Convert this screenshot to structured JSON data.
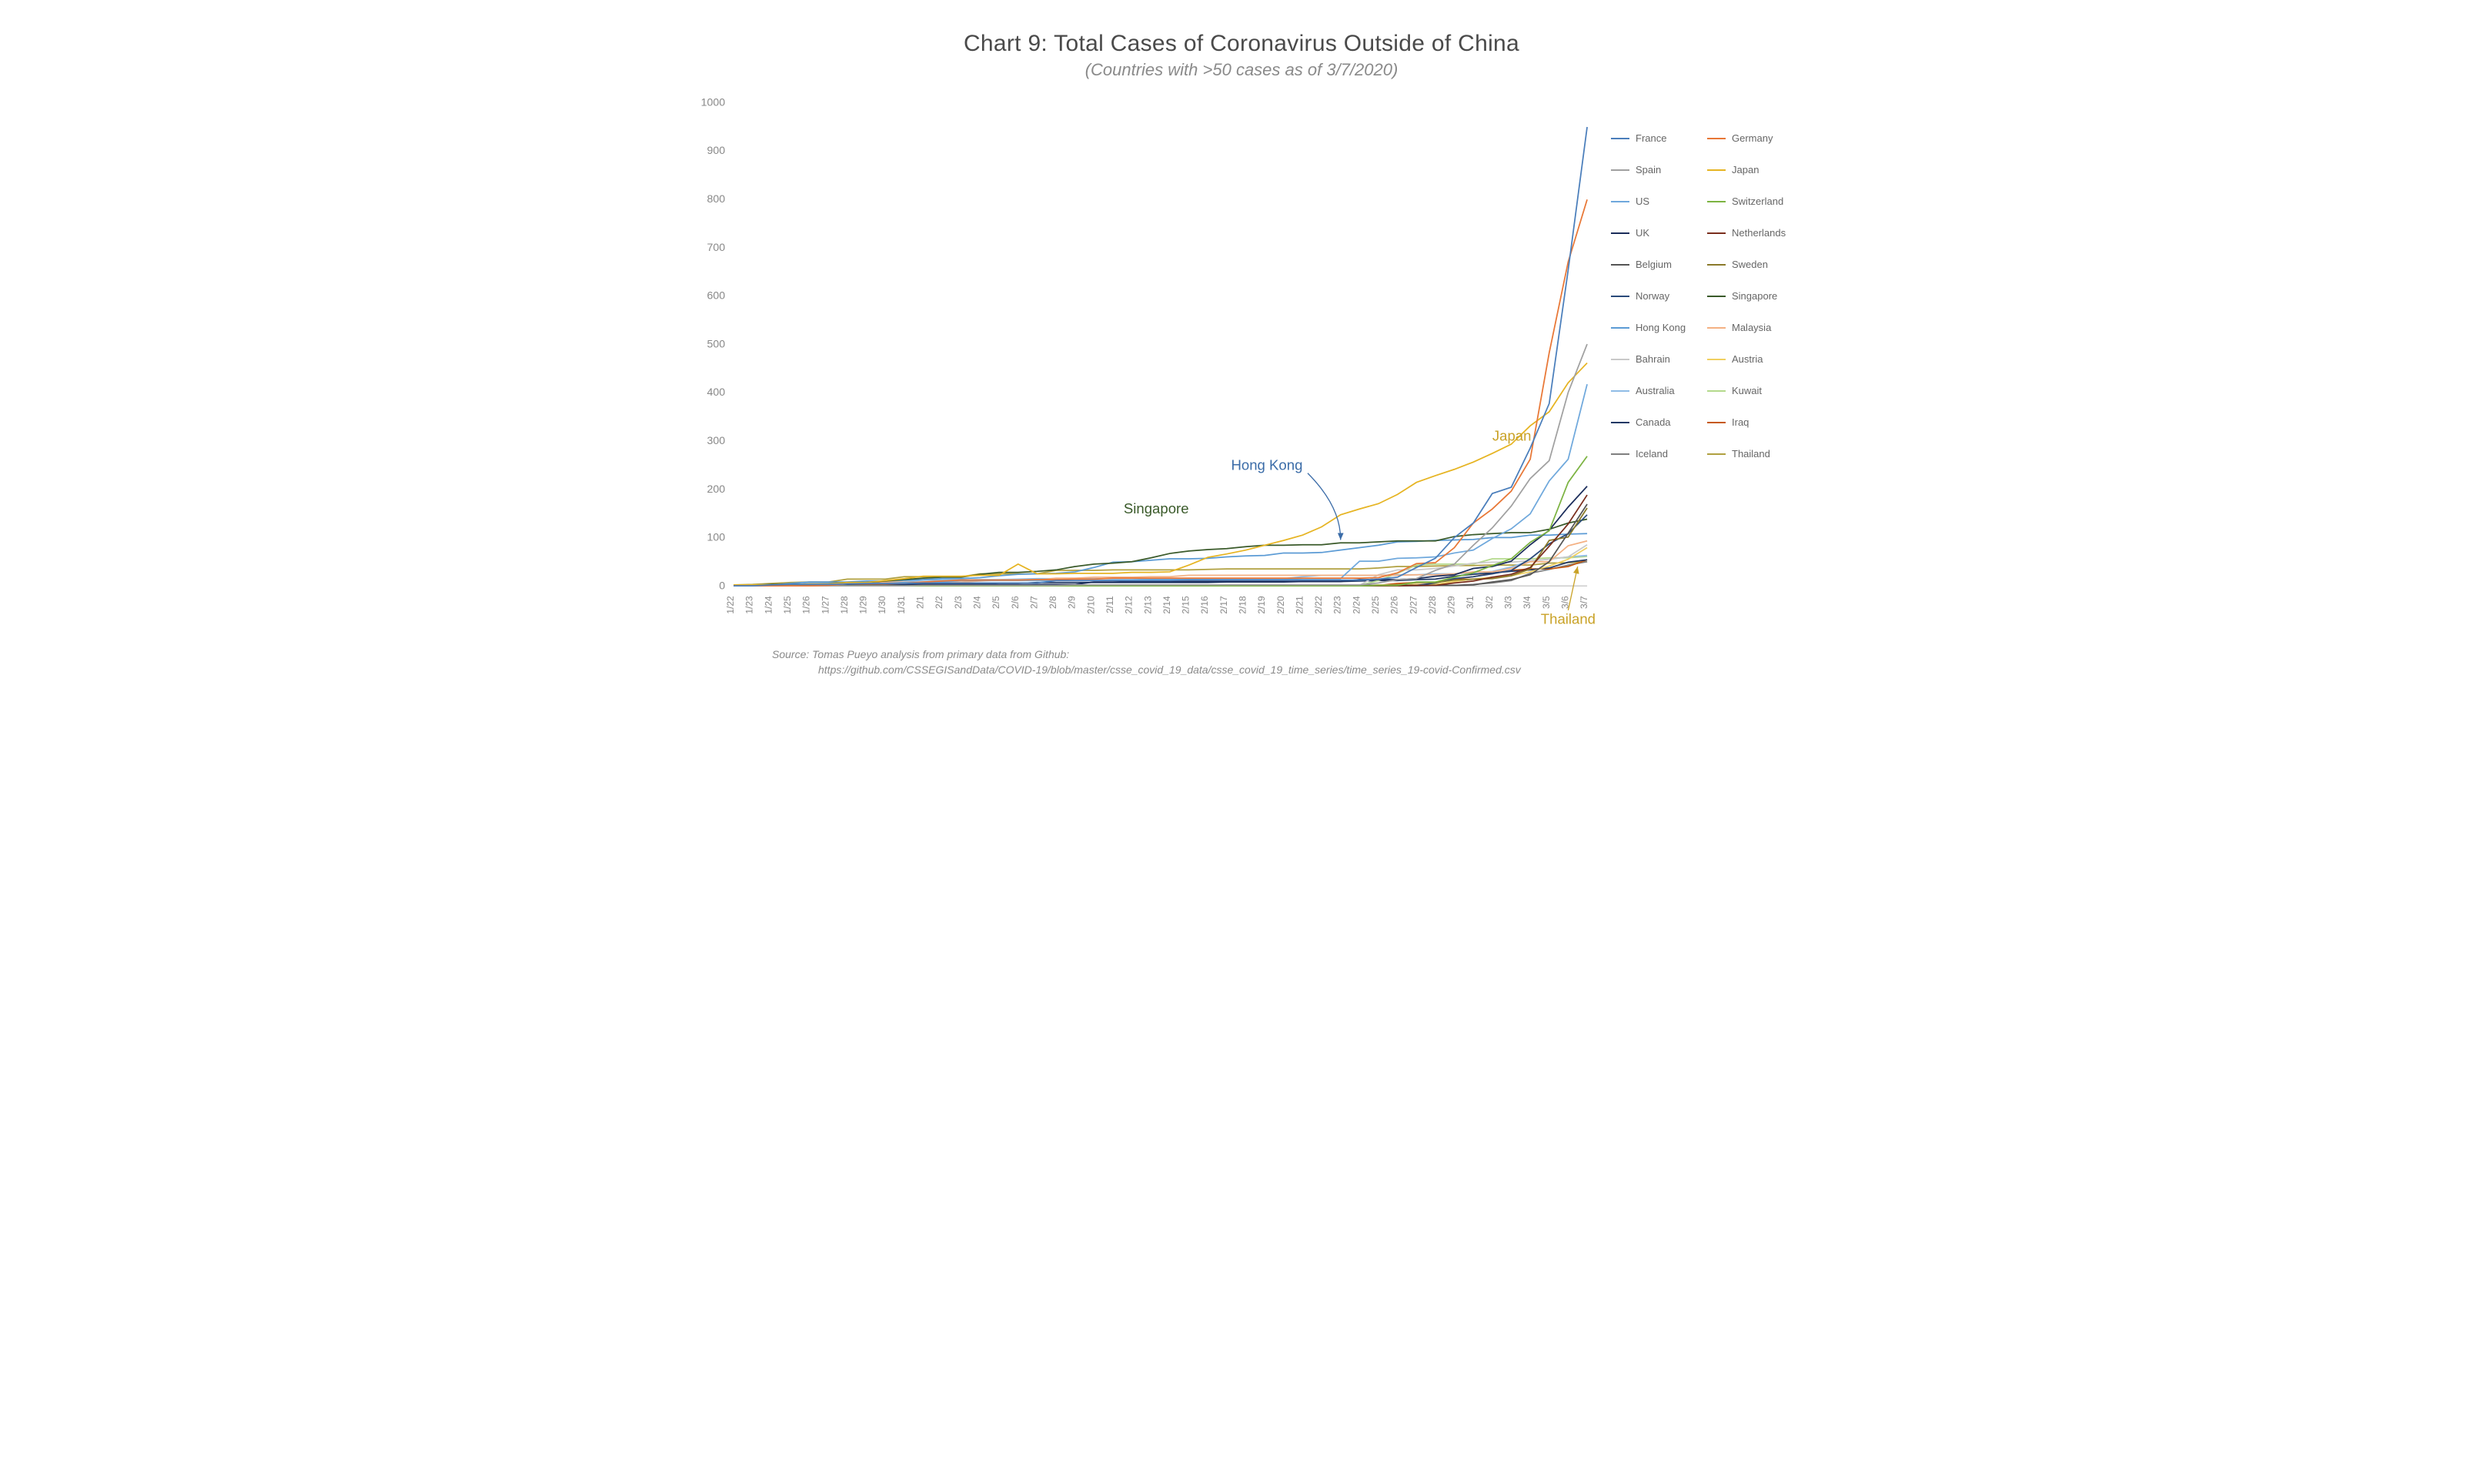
{
  "title": "Chart 9: Total Cases of Coronavirus Outside of China",
  "subtitle": "(Countries with >50 cases as of 3/7/2020)",
  "source_line1": "Source: Tomas Pueyo analysis from primary data from Github:",
  "source_line2": "https://github.com/CSSEGISandData/COVID-19/blob/master/csse_covid_19_data/csse_covid_19_time_series/time_series_19-covid-Confirmed.csv",
  "chart": {
    "type": "line",
    "background_color": "#ffffff",
    "ylim": [
      0,
      1000
    ],
    "ytick_step": 100,
    "yticks": [
      0,
      100,
      200,
      300,
      400,
      500,
      600,
      700,
      800,
      900,
      1000
    ],
    "xticks": [
      "1/22",
      "1/23",
      "1/24",
      "1/25",
      "1/26",
      "1/27",
      "1/28",
      "1/29",
      "1/30",
      "1/31",
      "2/1",
      "2/2",
      "2/3",
      "2/4",
      "2/5",
      "2/6",
      "2/7",
      "2/8",
      "2/9",
      "2/10",
      "2/11",
      "2/12",
      "2/13",
      "2/14",
      "2/15",
      "2/16",
      "2/17",
      "2/18",
      "2/19",
      "2/20",
      "2/21",
      "2/22",
      "2/23",
      "2/24",
      "2/25",
      "2/26",
      "2/27",
      "2/28",
      "2/29",
      "3/1",
      "3/2",
      "3/3",
      "3/4",
      "3/5",
      "3/6",
      "3/7"
    ],
    "title_fontsize": 30,
    "subtitle_fontsize": 22,
    "label_fontsize": 13,
    "line_width": 1.6,
    "grid": false,
    "baseline_color": "#bbbbbb",
    "text_color": "#888888",
    "series": [
      {
        "name": "France",
        "color": "#4a7ebb",
        "values": [
          0,
          0,
          2,
          3,
          3,
          3,
          4,
          5,
          5,
          5,
          6,
          6,
          6,
          6,
          6,
          6,
          6,
          11,
          11,
          11,
          11,
          11,
          11,
          11,
          12,
          12,
          12,
          12,
          12,
          12,
          12,
          12,
          12,
          12,
          14,
          18,
          38,
          57,
          100,
          130,
          191,
          204,
          285,
          377,
          653,
          949
        ]
      },
      {
        "name": "Germany",
        "color": "#e87736",
        "values": [
          0,
          0,
          0,
          0,
          0,
          1,
          4,
          4,
          4,
          5,
          8,
          10,
          12,
          12,
          12,
          12,
          13,
          13,
          14,
          14,
          16,
          16,
          16,
          16,
          16,
          16,
          16,
          16,
          16,
          16,
          16,
          16,
          16,
          16,
          17,
          27,
          46,
          48,
          79,
          130,
          159,
          196,
          262,
          482,
          670,
          799
        ]
      },
      {
        "name": "Spain",
        "color": "#a0a0a0",
        "values": [
          0,
          0,
          0,
          0,
          0,
          0,
          0,
          0,
          0,
          0,
          1,
          1,
          1,
          1,
          1,
          1,
          1,
          1,
          2,
          2,
          2,
          2,
          2,
          2,
          2,
          2,
          2,
          2,
          2,
          2,
          2,
          2,
          2,
          2,
          6,
          13,
          15,
          32,
          45,
          84,
          120,
          165,
          222,
          259,
          400,
          500
        ]
      },
      {
        "name": "Japan",
        "color": "#e6b422",
        "values": [
          2,
          2,
          2,
          2,
          4,
          4,
          7,
          7,
          11,
          15,
          20,
          20,
          20,
          22,
          22,
          45,
          25,
          25,
          26,
          26,
          26,
          28,
          28,
          29,
          43,
          59,
          66,
          74,
          84,
          94,
          105,
          122,
          147,
          159,
          170,
          189,
          214,
          228,
          241,
          256,
          274,
          293,
          331,
          360,
          420,
          461
        ]
      },
      {
        "name": "US",
        "color": "#6fa8dc",
        "values": [
          1,
          1,
          2,
          2,
          5,
          5,
          5,
          5,
          5,
          7,
          8,
          8,
          11,
          11,
          11,
          11,
          11,
          11,
          11,
          11,
          12,
          12,
          13,
          13,
          13,
          13,
          13,
          13,
          13,
          13,
          15,
          15,
          15,
          51,
          51,
          57,
          58,
          60,
          68,
          74,
          98,
          118,
          149,
          217,
          262,
          417
        ]
      },
      {
        "name": "Switzerland",
        "color": "#7cb342",
        "values": [
          0,
          0,
          0,
          0,
          0,
          0,
          0,
          0,
          0,
          0,
          0,
          0,
          0,
          0,
          0,
          0,
          0,
          0,
          0,
          0,
          0,
          0,
          0,
          0,
          0,
          0,
          0,
          0,
          0,
          0,
          0,
          0,
          0,
          0,
          1,
          1,
          8,
          8,
          18,
          27,
          42,
          56,
          90,
          114,
          214,
          268
        ]
      },
      {
        "name": "UK",
        "color": "#1b2d5b",
        "values": [
          0,
          0,
          0,
          0,
          0,
          0,
          0,
          0,
          0,
          2,
          2,
          2,
          2,
          2,
          2,
          2,
          3,
          3,
          3,
          8,
          8,
          9,
          9,
          9,
          9,
          9,
          9,
          9,
          9,
          9,
          9,
          9,
          9,
          13,
          13,
          13,
          15,
          20,
          23,
          36,
          40,
          51,
          85,
          115,
          163,
          206
        ]
      },
      {
        "name": "Netherlands",
        "color": "#7a2e1d",
        "values": [
          0,
          0,
          0,
          0,
          0,
          0,
          0,
          0,
          0,
          0,
          0,
          0,
          0,
          0,
          0,
          0,
          0,
          0,
          0,
          0,
          0,
          0,
          0,
          0,
          0,
          0,
          0,
          0,
          0,
          0,
          0,
          0,
          0,
          0,
          0,
          0,
          1,
          1,
          6,
          10,
          18,
          24,
          38,
          82,
          128,
          188
        ]
      },
      {
        "name": "Belgium",
        "color": "#555555",
        "values": [
          0,
          0,
          0,
          0,
          0,
          0,
          0,
          0,
          0,
          0,
          0,
          0,
          0,
          1,
          1,
          1,
          1,
          1,
          1,
          1,
          1,
          1,
          1,
          1,
          1,
          1,
          1,
          1,
          1,
          1,
          1,
          1,
          1,
          1,
          1,
          1,
          1,
          1,
          1,
          2,
          8,
          13,
          23,
          50,
          109,
          169
        ]
      },
      {
        "name": "Sweden",
        "color": "#8a7a2a",
        "values": [
          0,
          0,
          0,
          0,
          0,
          0,
          0,
          0,
          0,
          1,
          1,
          1,
          1,
          1,
          1,
          1,
          1,
          1,
          1,
          1,
          1,
          1,
          1,
          1,
          1,
          1,
          1,
          1,
          1,
          1,
          1,
          1,
          1,
          1,
          1,
          2,
          7,
          7,
          12,
          14,
          15,
          21,
          35,
          94,
          101,
          161
        ]
      },
      {
        "name": "Norway",
        "color": "#2a4a7a",
        "values": [
          0,
          0,
          0,
          0,
          0,
          0,
          0,
          0,
          0,
          0,
          0,
          0,
          0,
          0,
          0,
          0,
          0,
          0,
          0,
          0,
          0,
          0,
          0,
          0,
          0,
          0,
          0,
          0,
          0,
          0,
          0,
          0,
          0,
          0,
          0,
          1,
          1,
          6,
          15,
          19,
          25,
          32,
          56,
          87,
          108,
          147
        ]
      },
      {
        "name": "Singapore",
        "color": "#3a5a2a",
        "values": [
          0,
          1,
          3,
          3,
          4,
          5,
          7,
          7,
          10,
          13,
          16,
          18,
          18,
          24,
          28,
          28,
          30,
          33,
          40,
          45,
          47,
          50,
          58,
          67,
          72,
          75,
          77,
          81,
          84,
          84,
          85,
          85,
          89,
          89,
          91,
          93,
          93,
          93,
          102,
          106,
          108,
          110,
          110,
          117,
          130,
          138
        ]
      },
      {
        "name": "Hong Kong",
        "color": "#5b9bd5",
        "values": [
          0,
          2,
          2,
          5,
          8,
          8,
          8,
          10,
          10,
          12,
          13,
          15,
          15,
          17,
          21,
          24,
          25,
          26,
          29,
          38,
          49,
          50,
          53,
          56,
          56,
          57,
          60,
          62,
          63,
          68,
          68,
          69,
          74,
          79,
          84,
          91,
          92,
          94,
          95,
          96,
          100,
          100,
          105,
          105,
          107,
          108
        ]
      },
      {
        "name": "Malaysia",
        "color": "#f4b183",
        "values": [
          0,
          0,
          0,
          3,
          4,
          4,
          4,
          7,
          8,
          8,
          8,
          8,
          8,
          10,
          12,
          12,
          12,
          16,
          16,
          18,
          18,
          18,
          19,
          19,
          22,
          22,
          22,
          22,
          22,
          22,
          22,
          22,
          22,
          22,
          22,
          22,
          23,
          23,
          25,
          29,
          29,
          36,
          50,
          50,
          83,
          93
        ]
      },
      {
        "name": "Bahrain",
        "color": "#c9c9c9",
        "values": [
          0,
          0,
          0,
          0,
          0,
          0,
          0,
          0,
          0,
          0,
          0,
          0,
          0,
          0,
          0,
          0,
          0,
          0,
          0,
          0,
          0,
          0,
          0,
          0,
          0,
          0,
          0,
          0,
          0,
          0,
          0,
          0,
          0,
          1,
          23,
          33,
          33,
          36,
          41,
          47,
          49,
          49,
          52,
          55,
          60,
          85
        ]
      },
      {
        "name": "Austria",
        "color": "#f0d060",
        "values": [
          0,
          0,
          0,
          0,
          0,
          0,
          0,
          0,
          0,
          0,
          0,
          0,
          0,
          0,
          0,
          0,
          0,
          0,
          0,
          0,
          0,
          0,
          0,
          0,
          0,
          0,
          0,
          0,
          0,
          0,
          0,
          0,
          0,
          0,
          2,
          2,
          3,
          3,
          9,
          14,
          18,
          21,
          29,
          41,
          55,
          79
        ]
      },
      {
        "name": "Australia",
        "color": "#8fbce6",
        "values": [
          0,
          0,
          0,
          0,
          4,
          5,
          5,
          6,
          9,
          9,
          12,
          12,
          12,
          13,
          13,
          14,
          15,
          15,
          15,
          15,
          15,
          15,
          15,
          15,
          15,
          15,
          15,
          15,
          15,
          15,
          19,
          22,
          22,
          22,
          22,
          23,
          23,
          25,
          25,
          27,
          30,
          39,
          52,
          55,
          60,
          63
        ]
      },
      {
        "name": "Kuwait",
        "color": "#b4d98c",
        "values": [
          0,
          0,
          0,
          0,
          0,
          0,
          0,
          0,
          0,
          0,
          0,
          0,
          0,
          0,
          0,
          0,
          0,
          0,
          0,
          0,
          0,
          0,
          0,
          0,
          0,
          0,
          0,
          0,
          0,
          0,
          0,
          0,
          0,
          1,
          11,
          26,
          43,
          45,
          45,
          45,
          56,
          56,
          56,
          58,
          58,
          61
        ]
      },
      {
        "name": "Canada",
        "color": "#203864",
        "values": [
          0,
          0,
          0,
          0,
          1,
          1,
          2,
          2,
          2,
          4,
          4,
          4,
          4,
          4,
          5,
          5,
          7,
          7,
          7,
          7,
          7,
          7,
          7,
          7,
          7,
          7,
          8,
          8,
          8,
          8,
          9,
          9,
          9,
          10,
          11,
          11,
          13,
          14,
          20,
          24,
          27,
          30,
          33,
          37,
          49,
          54
        ]
      },
      {
        "name": "Iraq",
        "color": "#c65911",
        "values": [
          0,
          0,
          0,
          0,
          0,
          0,
          0,
          0,
          0,
          0,
          0,
          0,
          0,
          0,
          0,
          0,
          0,
          0,
          0,
          0,
          0,
          0,
          0,
          0,
          0,
          0,
          0,
          0,
          0,
          0,
          0,
          0,
          0,
          1,
          1,
          5,
          7,
          7,
          13,
          19,
          26,
          32,
          35,
          35,
          40,
          54
        ]
      },
      {
        "name": "Iceland",
        "color": "#7f7f7f",
        "values": [
          0,
          0,
          0,
          0,
          0,
          0,
          0,
          0,
          0,
          0,
          0,
          0,
          0,
          0,
          0,
          0,
          0,
          0,
          0,
          0,
          0,
          0,
          0,
          0,
          0,
          0,
          0,
          0,
          0,
          0,
          0,
          0,
          0,
          0,
          0,
          0,
          0,
          1,
          1,
          3,
          6,
          11,
          26,
          34,
          43,
          50
        ]
      },
      {
        "name": "Thailand",
        "color": "#b0a040",
        "values": [
          2,
          3,
          5,
          7,
          8,
          8,
          14,
          14,
          14,
          19,
          19,
          19,
          19,
          25,
          25,
          25,
          25,
          32,
          32,
          32,
          33,
          33,
          33,
          33,
          33,
          34,
          35,
          35,
          35,
          35,
          35,
          35,
          35,
          35,
          37,
          40,
          40,
          41,
          42,
          42,
          43,
          43,
          43,
          47,
          48,
          50
        ]
      }
    ],
    "annotations": [
      {
        "label": "Japan",
        "color": "#c9a227",
        "x_index": 40,
        "y": 300,
        "arrow": false
      },
      {
        "label": "Hong Kong",
        "color": "#3b6ca8",
        "x_index": 30,
        "y": 240,
        "arrow": true,
        "arrow_to_x": 32,
        "arrow_to_y": 95
      },
      {
        "label": "Singapore",
        "color": "#3a5a2a",
        "x_index": 24,
        "y": 150,
        "arrow": false
      },
      {
        "label": "Thailand",
        "color": "#c9a227",
        "x_index": 44,
        "y": -45,
        "arrow": true,
        "arrow_to_x": 44.5,
        "arrow_to_y": 40
      }
    ]
  }
}
